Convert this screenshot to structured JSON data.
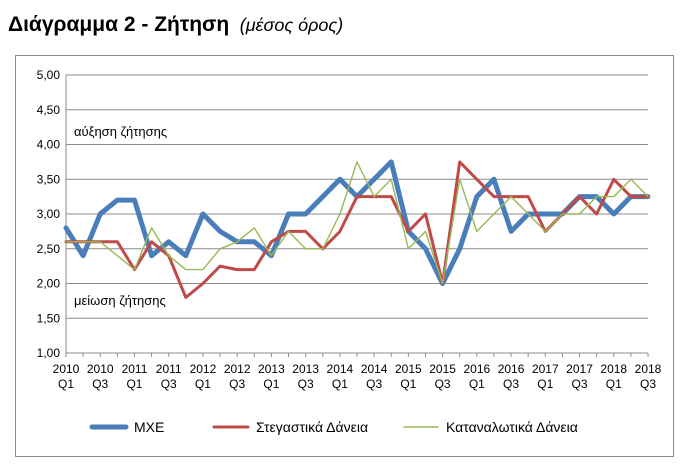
{
  "header": {
    "title": "Διάγραμμα 2 - Ζήτηση",
    "subtitle": "(μέσος όρος)"
  },
  "chart_data": {
    "type": "line",
    "ylim": [
      1.0,
      5.0
    ],
    "y_ticks": [
      "1,00",
      "1,50",
      "2,00",
      "2,50",
      "3,00",
      "3,50",
      "4,00",
      "4,50",
      "5,00"
    ],
    "grid": "horizontal",
    "legend_position": "bottom",
    "x": [
      "2010 Q1",
      "2010 Q2",
      "2010 Q3",
      "2010 Q4",
      "2011 Q1",
      "2011 Q2",
      "2011 Q3",
      "2011 Q4",
      "2012 Q1",
      "2012 Q2",
      "2012 Q3",
      "2012 Q4",
      "2013 Q1",
      "2013 Q2",
      "2013 Q3",
      "2013 Q4",
      "2014 Q1",
      "2014 Q2",
      "2014 Q3",
      "2014 Q4",
      "2015 Q1",
      "2015 Q2",
      "2015 Q3",
      "2015 Q4",
      "2016 Q1",
      "2016 Q2",
      "2016 Q3",
      "2016 Q4",
      "2017 Q1",
      "2017 Q2",
      "2017 Q3",
      "2017 Q4",
      "2018 Q1",
      "2018 Q2",
      "2018 Q3"
    ],
    "x_tick_labels": [
      {
        "year": "2010",
        "q": "Q1"
      },
      {
        "year": "2010",
        "q": "Q3"
      },
      {
        "year": "2011",
        "q": "Q1"
      },
      {
        "year": "2011",
        "q": "Q3"
      },
      {
        "year": "2012",
        "q": "Q1"
      },
      {
        "year": "2012",
        "q": "Q3"
      },
      {
        "year": "2013",
        "q": "Q1"
      },
      {
        "year": "2013",
        "q": "Q3"
      },
      {
        "year": "2014",
        "q": "Q1"
      },
      {
        "year": "2014",
        "q": "Q3"
      },
      {
        "year": "2015",
        "q": "Q1"
      },
      {
        "year": "2015",
        "q": "Q3"
      },
      {
        "year": "2016",
        "q": "Q1"
      },
      {
        "year": "2016",
        "q": "Q3"
      },
      {
        "year": "2017",
        "q": "Q1"
      },
      {
        "year": "2017",
        "q": "Q3"
      },
      {
        "year": "2018",
        "q": "Q1"
      },
      {
        "year": "2018",
        "q": "Q3"
      }
    ],
    "annotations": {
      "upper": "αύξηση ζήτησης",
      "lower": "μείωση ζήτησης"
    },
    "series": [
      {
        "name": "ΜΧΕ",
        "color": "#4a7ebb",
        "values": [
          2.8,
          2.4,
          3.0,
          3.2,
          3.2,
          2.4,
          2.6,
          2.4,
          3.0,
          2.75,
          2.6,
          2.6,
          2.4,
          3.0,
          3.0,
          3.25,
          3.5,
          3.25,
          3.5,
          3.75,
          2.75,
          2.5,
          2.0,
          2.5,
          3.25,
          3.5,
          2.75,
          3.0,
          3.0,
          3.0,
          3.25,
          3.25,
          3.0,
          3.25,
          3.25
        ]
      },
      {
        "name": "Στεγαστικά Δάνεια",
        "color": "#be4b48",
        "values": [
          2.6,
          2.6,
          2.6,
          2.6,
          2.2,
          2.6,
          2.4,
          1.8,
          2.0,
          2.25,
          2.2,
          2.2,
          2.6,
          2.75,
          2.75,
          2.5,
          2.75,
          3.25,
          3.25,
          3.25,
          2.75,
          3.0,
          2.0,
          3.75,
          3.5,
          3.25,
          3.25,
          3.25,
          2.75,
          3.0,
          3.25,
          3.0,
          3.5,
          3.25,
          3.25
        ]
      },
      {
        "name": "Καταναλωτικά Δάνεια",
        "color": "#98b954",
        "values": [
          2.6,
          2.6,
          2.6,
          2.4,
          2.2,
          2.8,
          2.4,
          2.2,
          2.2,
          2.5,
          2.6,
          2.8,
          2.4,
          2.75,
          2.5,
          2.5,
          3.0,
          3.75,
          3.25,
          3.5,
          2.5,
          2.75,
          2.0,
          3.5,
          2.75,
          3.0,
          3.25,
          3.0,
          2.75,
          3.0,
          3.0,
          3.25,
          3.25,
          3.5,
          3.25
        ]
      }
    ]
  }
}
